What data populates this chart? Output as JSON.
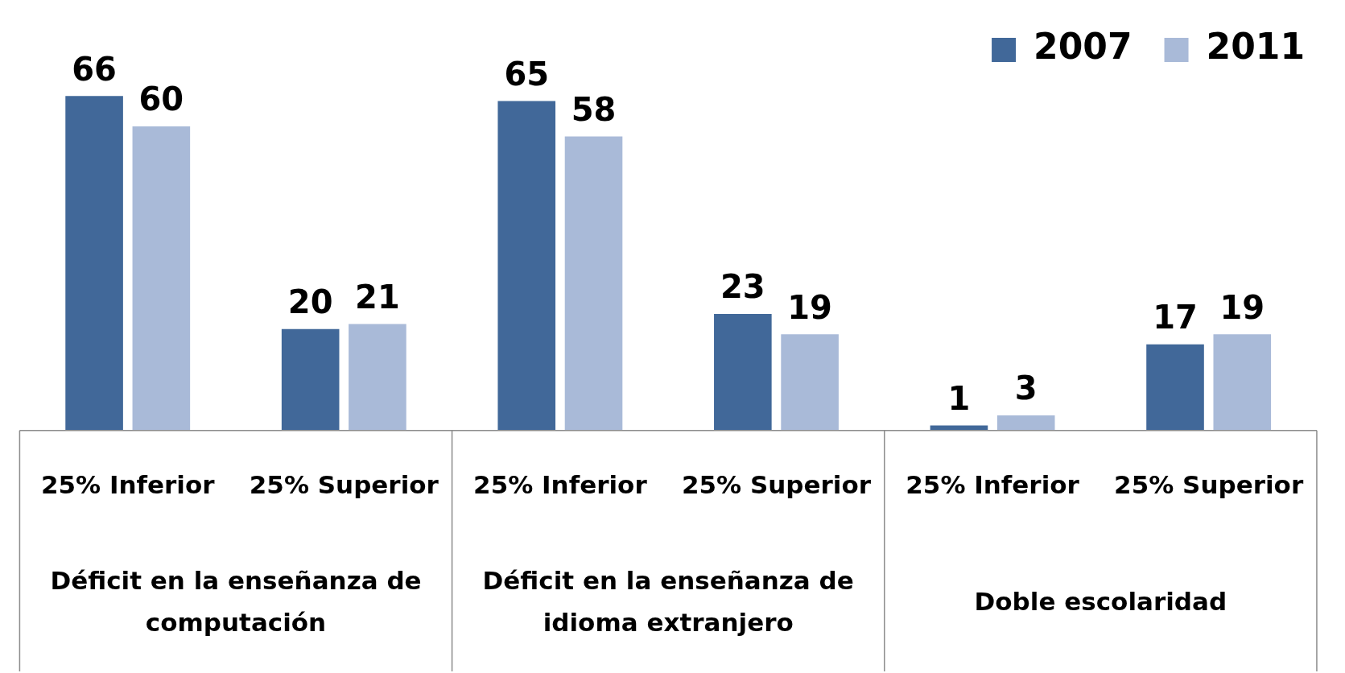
{
  "chart_data": {
    "type": "bar",
    "categories": [
      "25% Inferior",
      "25% Superior",
      "25% Inferior",
      "25% Superior",
      "25% Inferior",
      "25% Superior"
    ],
    "series": [
      {
        "name": "2007",
        "color": "#416899",
        "values": [
          66,
          20,
          65,
          23,
          1,
          17
        ]
      },
      {
        "name": "2011",
        "color": "#a9bad8",
        "values": [
          60,
          21,
          58,
          19,
          3,
          19
        ]
      }
    ],
    "annotations": [
      "Déficit en la enseñanza de computación",
      "Déficit en la enseñanza de idioma extranjero",
      "Doble escolaridad"
    ],
    "data_labels": true,
    "legend": "top right",
    "grid": false
  }
}
